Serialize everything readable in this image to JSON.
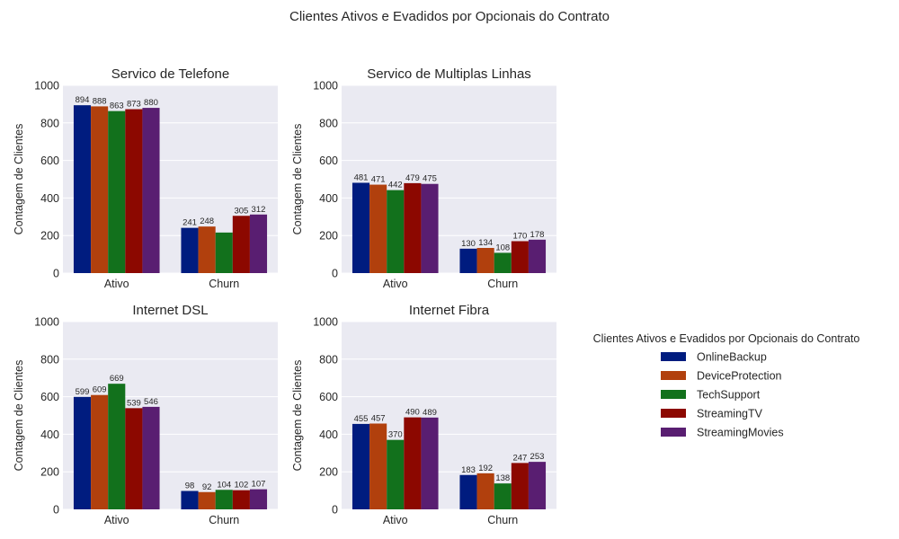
{
  "figure": {
    "suptitle": "Clientes Ativos e Evadidos por Opcionais do Contrato"
  },
  "chart_data": [
    {
      "type": "bar",
      "title": "Servico de Telefone",
      "xlabel": "",
      "ylabel": "Contagem de Clientes",
      "ylim": [
        0,
        1000
      ],
      "yticks": [
        0,
        200,
        400,
        600,
        800,
        1000
      ],
      "categories": [
        "Ativo",
        "Churn"
      ],
      "series": [
        {
          "name": "OnlineBackup",
          "values": [
            894,
            241
          ]
        },
        {
          "name": "DeviceProtection",
          "values": [
            888,
            248
          ]
        },
        {
          "name": "TechSupport",
          "values": [
            863,
            216
          ]
        },
        {
          "name": "StreamingTV",
          "values": [
            873,
            305
          ]
        },
        {
          "name": "StreamingMovies",
          "values": [
            880,
            312
          ]
        }
      ],
      "bar_labels": [
        [
          "894",
          "888",
          "863",
          "873",
          "880"
        ],
        [
          "241",
          "248",
          "",
          "305",
          "312"
        ]
      ]
    },
    {
      "type": "bar",
      "title": "Servico de Multiplas Linhas",
      "xlabel": "",
      "ylabel": "Contagem de Clientes",
      "ylim": [
        0,
        1000
      ],
      "yticks": [
        0,
        200,
        400,
        600,
        800,
        1000
      ],
      "categories": [
        "Ativo",
        "Churn"
      ],
      "series": [
        {
          "name": "OnlineBackup",
          "values": [
            481,
            130
          ]
        },
        {
          "name": "DeviceProtection",
          "values": [
            471,
            134
          ]
        },
        {
          "name": "TechSupport",
          "values": [
            442,
            108
          ]
        },
        {
          "name": "StreamingTV",
          "values": [
            479,
            170
          ]
        },
        {
          "name": "StreamingMovies",
          "values": [
            475,
            178
          ]
        }
      ],
      "bar_labels": [
        [
          "481",
          "471",
          "442",
          "479",
          "475"
        ],
        [
          "130",
          "134",
          "108",
          "170",
          "178"
        ]
      ]
    },
    {
      "type": "bar",
      "title": "Internet DSL",
      "xlabel": "",
      "ylabel": "Contagem de Clientes",
      "ylim": [
        0,
        1000
      ],
      "yticks": [
        0,
        200,
        400,
        600,
        800,
        1000
      ],
      "categories": [
        "Ativo",
        "Churn"
      ],
      "series": [
        {
          "name": "OnlineBackup",
          "values": [
            599,
            98
          ]
        },
        {
          "name": "DeviceProtection",
          "values": [
            609,
            92
          ]
        },
        {
          "name": "TechSupport",
          "values": [
            669,
            104
          ]
        },
        {
          "name": "StreamingTV",
          "values": [
            539,
            102
          ]
        },
        {
          "name": "StreamingMovies",
          "values": [
            546,
            107
          ]
        }
      ],
      "bar_labels": [
        [
          "599",
          "609",
          "669",
          "539",
          "546"
        ],
        [
          "98",
          "92",
          "104",
          "102",
          "107"
        ]
      ]
    },
    {
      "type": "bar",
      "title": "Internet Fibra",
      "xlabel": "",
      "ylabel": "Contagem de Clientes",
      "ylim": [
        0,
        1000
      ],
      "yticks": [
        0,
        200,
        400,
        600,
        800,
        1000
      ],
      "categories": [
        "Ativo",
        "Churn"
      ],
      "series": [
        {
          "name": "OnlineBackup",
          "values": [
            455,
            183
          ]
        },
        {
          "name": "DeviceProtection",
          "values": [
            457,
            192
          ]
        },
        {
          "name": "TechSupport",
          "values": [
            370,
            138
          ]
        },
        {
          "name": "StreamingTV",
          "values": [
            490,
            247
          ]
        },
        {
          "name": "StreamingMovies",
          "values": [
            489,
            253
          ]
        }
      ],
      "bar_labels": [
        [
          "455",
          "457",
          "370",
          "490",
          "489"
        ],
        [
          "183",
          "192",
          "138",
          "247",
          "253"
        ]
      ]
    }
  ],
  "legend": {
    "title": "Clientes Ativos e Evadidos por Opcionais do Contrato",
    "placement": "right",
    "items": [
      "OnlineBackup",
      "DeviceProtection",
      "TechSupport",
      "StreamingTV",
      "StreamingMovies"
    ]
  },
  "style": {
    "series_colors": [
      "#001c7f",
      "#b1400d",
      "#12711c",
      "#8c0800",
      "#591e71"
    ],
    "plot_background": "#eaeaf2",
    "grid_color": "#ffffff"
  }
}
